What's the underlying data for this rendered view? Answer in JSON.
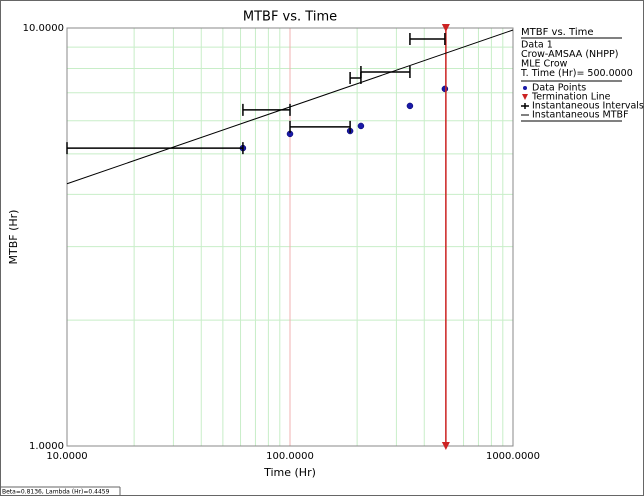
{
  "chart_data": {
    "type": "reliability-growth",
    "title": "MTBF vs. Time",
    "x_label": "Time (Hr)",
    "y_label": "MTBF (Hr)",
    "log_x": true,
    "log_y": true,
    "grid": true,
    "xlim": [
      10,
      1000
    ],
    "xticks": [
      {
        "value": 10,
        "label": "10.0000"
      },
      {
        "value": 100,
        "label": "100.0000"
      },
      {
        "value": 1000,
        "label": "1000.0000"
      }
    ],
    "ylim": [
      1,
      10
    ],
    "yticks": [
      {
        "value": 1,
        "label": "1.0000"
      },
      {
        "value": 10,
        "label": "10.0000"
      }
    ],
    "legend_title": "MTBF vs. Time",
    "legend_info": [
      "Data 1",
      "Crow-AMSAA (NHPP)",
      "MLE Crow",
      "T. Time (Hr)= 500.0000"
    ],
    "footer": "Beta=0.8136, Lambda (Hr)=0.4459",
    "series": [
      {
        "name": "Data Points",
        "kind": "scatter",
        "color": "#1a1aa8",
        "x": [
          61.5,
          100,
          186,
          208,
          345,
          495
        ],
        "values": [
          5.16,
          5.58,
          5.67,
          5.83,
          6.51,
          7.15
        ]
      },
      {
        "name": "Termination Line",
        "kind": "vline",
        "color": "#cc2222",
        "x": [
          500,
          500
        ],
        "values": [
          1,
          10
        ]
      },
      {
        "name": "Instantaneous Intervals",
        "kind": "interval",
        "color": "#000000",
        "x_start": [
          10,
          61.5,
          100,
          186,
          208,
          345
        ],
        "x_end": [
          61.5,
          100,
          186,
          208,
          345,
          495
        ],
        "values": [
          5.16,
          6.37,
          5.8,
          7.59,
          7.85,
          9.41
        ]
      },
      {
        "name": "Instantaneous MTBF",
        "kind": "line",
        "color": "#000000",
        "x": [
          10,
          1000
        ],
        "values": [
          4.24,
          9.89
        ]
      }
    ]
  }
}
